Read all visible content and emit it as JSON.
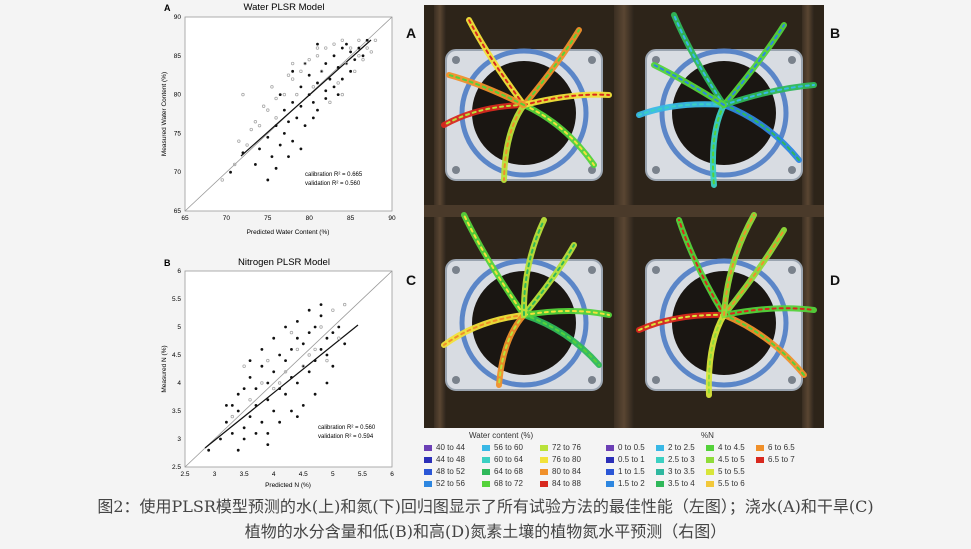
{
  "panel_a": {
    "label": "A",
    "title": "Water PLSR Model",
    "xlabel": "Predicted Water Content (%)",
    "ylabel": "Measured Water Content (%)",
    "xticks": [
      "65",
      "70",
      "75",
      "80",
      "85",
      "90"
    ],
    "yticks": [
      "65",
      "70",
      "75",
      "80",
      "85",
      "90"
    ],
    "stat1": "calibration R² = 0.665",
    "stat2": "validation R² = 0.560"
  },
  "panel_b": {
    "label": "B",
    "title": "Nitrogen PLSR Model",
    "xlabel": "Predicted N (%)",
    "ylabel": "Measured N (%)",
    "xticks": [
      "2.5",
      "3",
      "3.5",
      "4",
      "4.5",
      "5",
      "5.5",
      "6"
    ],
    "yticks": [
      "2.5",
      "3",
      "3.5",
      "4",
      "4.5",
      "5",
      "5.5",
      "6"
    ],
    "stat1": "calibration R² = 0.560",
    "stat2": "validation R² = 0.594"
  },
  "chart_data": [
    {
      "type": "scatter",
      "title": "Water PLSR Model",
      "xlabel": "Predicted Water Content (%)",
      "ylabel": "Measured Water Content (%)",
      "xlim": [
        65,
        90
      ],
      "ylim": [
        65,
        90
      ],
      "series": [
        {
          "name": "calibration",
          "color": "#111111",
          "x": [
            70.5,
            72,
            73.5,
            74,
            75,
            75.5,
            76,
            76.5,
            77,
            77,
            77.5,
            78,
            78,
            78.5,
            79,
            79,
            79.5,
            80,
            80,
            80.5,
            81,
            81,
            81.5,
            82,
            82,
            82.5,
            83,
            83,
            83.5,
            84,
            84,
            84.5,
            85,
            85,
            85.5,
            86,
            86.5,
            87,
            75,
            76,
            77.5,
            79,
            80.5,
            82,
            83.5,
            78,
            79.5,
            81,
            76.5,
            84.5
          ],
          "y": [
            70,
            72.5,
            71,
            73,
            74.5,
            72,
            76,
            73.5,
            75,
            78,
            76.5,
            74,
            79,
            77,
            78.5,
            81,
            76,
            80,
            82.5,
            79,
            81.5,
            78,
            83,
            80.5,
            84,
            82,
            81,
            85,
            83.5,
            82,
            86,
            84,
            83,
            85.5,
            84.5,
            86,
            85,
            87,
            69,
            70.5,
            72,
            73,
            77,
            79.5,
            80,
            83,
            84,
            86.5,
            80,
            86.5
          ]
        },
        {
          "name": "validation",
          "color": "#aaaaaa",
          "x": [
            69.5,
            71,
            72.5,
            73,
            74,
            75,
            76,
            77,
            78,
            79,
            80,
            81,
            82,
            83,
            84,
            85,
            86,
            87,
            88,
            71.5,
            73.5,
            74.5,
            76,
            77.5,
            78.5,
            79.5,
            80.5,
            81.5,
            82.5,
            83.5,
            84.5,
            85.5,
            86.5,
            87.5,
            72,
            75.5,
            78,
            81,
            84,
            86
          ],
          "y": [
            69,
            71,
            73.5,
            75.5,
            76,
            78,
            79.5,
            80,
            82,
            83,
            84.5,
            85,
            86,
            86.5,
            87,
            86,
            85,
            86,
            87,
            74,
            76.5,
            78.5,
            77,
            82.5,
            80,
            84,
            81,
            83,
            79,
            81.5,
            84,
            83,
            84.5,
            85.5,
            80,
            81,
            84,
            86,
            80,
            87
          ]
        }
      ]
    },
    {
      "type": "scatter",
      "title": "Nitrogen PLSR Model",
      "xlabel": "Predicted N (%)",
      "ylabel": "Measured N (%)",
      "xlim": [
        2.5,
        6
      ],
      "ylim": [
        2.5,
        6
      ],
      "series": [
        {
          "name": "calibration",
          "color": "#111111",
          "x": [
            2.9,
            3.1,
            3.2,
            3.3,
            3.4,
            3.4,
            3.5,
            3.5,
            3.6,
            3.6,
            3.7,
            3.7,
            3.8,
            3.8,
            3.9,
            3.9,
            4.0,
            4.0,
            4.1,
            4.1,
            4.2,
            4.2,
            4.3,
            4.3,
            4.4,
            4.4,
            4.5,
            4.5,
            4.6,
            4.6,
            4.7,
            4.7,
            4.8,
            4.8,
            4.9,
            4.9,
            5.0,
            5.1,
            5.2,
            3.3,
            3.5,
            3.7,
            3.9,
            4.1,
            4.3,
            4.5,
            4.7,
            4.9,
            3.6,
            3.8,
            4.0,
            4.2,
            4.4,
            4.6,
            4.8,
            3.4,
            3.9,
            4.4,
            5.0,
            3.2
          ],
          "y": [
            2.8,
            3.0,
            3.3,
            3.1,
            3.5,
            3.8,
            3.2,
            3.9,
            3.4,
            4.1,
            3.6,
            3.9,
            3.3,
            4.3,
            3.7,
            4.0,
            3.5,
            4.2,
            3.9,
            4.5,
            3.8,
            4.4,
            4.1,
            4.6,
            4.0,
            4.8,
            4.3,
            4.7,
            4.2,
            4.9,
            4.4,
            5.0,
            4.6,
            5.2,
            4.5,
            4.8,
            4.9,
            5.0,
            4.7,
            3.6,
            3.0,
            3.1,
            2.9,
            3.3,
            3.5,
            3.6,
            3.8,
            4.0,
            4.4,
            4.6,
            4.8,
            5.0,
            5.1,
            5.3,
            5.4,
            2.8,
            3.1,
            3.4,
            4.3,
            3.6
          ]
        },
        {
          "name": "validation",
          "color": "#aaaaaa",
          "x": [
            3.3,
            3.6,
            3.8,
            4.0,
            4.2,
            4.4,
            4.6,
            4.8,
            5.0,
            5.2,
            3.5,
            3.9,
            4.3,
            4.7,
            5.1,
            4.1,
            4.5,
            4.9
          ],
          "y": [
            3.4,
            3.7,
            4.0,
            3.9,
            4.2,
            4.6,
            4.5,
            5.0,
            5.3,
            5.4,
            4.3,
            4.4,
            4.9,
            4.6,
            4.8,
            4.0,
            4.3,
            4.4
          ]
        }
      ]
    }
  ],
  "photos": {
    "labels": [
      "A",
      "B",
      "C",
      "D"
    ]
  },
  "legend_water": {
    "title": "Water content (%)",
    "items": [
      {
        "label": "40 to 44",
        "color": "#6b3fb5"
      },
      {
        "label": "44 to 48",
        "color": "#2b2fb8"
      },
      {
        "label": "48 to 52",
        "color": "#2a56d6"
      },
      {
        "label": "52 to 56",
        "color": "#2d86e0"
      },
      {
        "label": "56 to 60",
        "color": "#39b8e6"
      },
      {
        "label": "60 to 64",
        "color": "#3bd0c2"
      },
      {
        "label": "64 to 68",
        "color": "#2fb85a"
      },
      {
        "label": "68 to 72",
        "color": "#54d23a"
      },
      {
        "label": "72 to 76",
        "color": "#b9e23a"
      },
      {
        "label": "76 to 80",
        "color": "#f2e23a"
      },
      {
        "label": "80 to 84",
        "color": "#f0902a"
      },
      {
        "label": "84 to 88",
        "color": "#d8281e"
      }
    ]
  },
  "legend_n": {
    "title": "%N",
    "items": [
      {
        "label": "0 to 0.5",
        "color": "#6b3fb5"
      },
      {
        "label": "0.5 to 1",
        "color": "#2b2fb8"
      },
      {
        "label": "1 to 1.5",
        "color": "#2a56d6"
      },
      {
        "label": "1.5 to 2",
        "color": "#2d86e0"
      },
      {
        "label": "2 to 2.5",
        "color": "#39b8e6"
      },
      {
        "label": "2.5 to 3",
        "color": "#3bd0c2"
      },
      {
        "label": "3 to 3.5",
        "color": "#2fb8a0"
      },
      {
        "label": "3.5 to 4",
        "color": "#2fb85a"
      },
      {
        "label": "4 to 4.5",
        "color": "#54d23a"
      },
      {
        "label": "4.5 to 5",
        "color": "#8fdc3a"
      },
      {
        "label": "5 to 5.5",
        "color": "#d8e63a"
      },
      {
        "label": "5.5 to 6",
        "color": "#f2c83a"
      },
      {
        "label": "6 to 6.5",
        "color": "#f0902a"
      },
      {
        "label": "6.5 to 7",
        "color": "#d8281e"
      }
    ]
  },
  "caption": {
    "line1": "图2：使用PLSR模型预测的水(上)和氮(下)回归图显示了所有试验方法的最佳性能（左图）；浇水(A)和干旱(C)",
    "line2": "植物的水分含量和低(B)和高(D)氮素土壤的植物氮水平预测（右图）"
  }
}
